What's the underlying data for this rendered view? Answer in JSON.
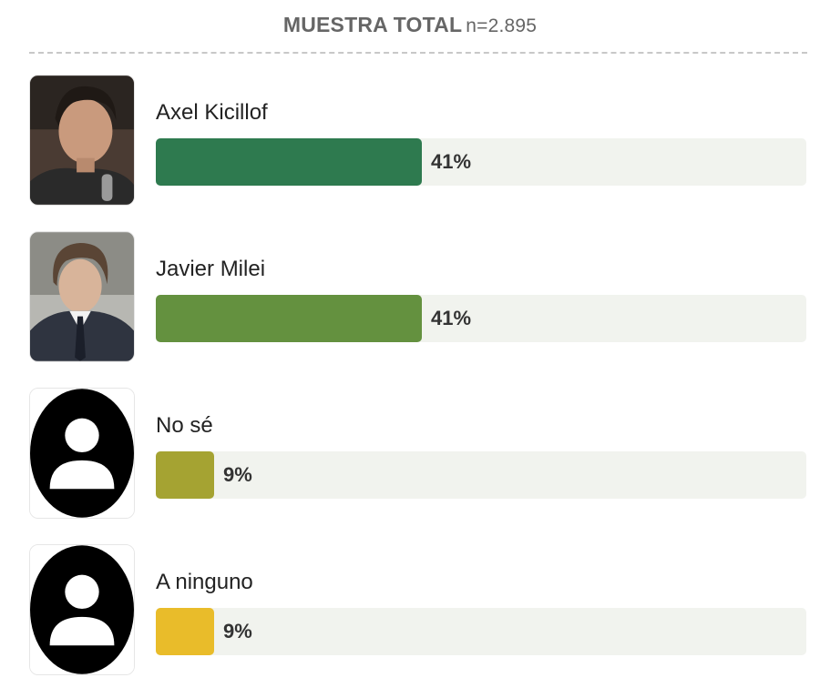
{
  "header": {
    "title": "MUESTRA TOTAL",
    "n_label": "n=2.895"
  },
  "chart_data": {
    "type": "bar",
    "orientation": "horizontal",
    "title": "MUESTRA TOTAL",
    "subtitle": "n=2.895",
    "categories": [
      "Axel Kicillof",
      "Javier Milei",
      "No sé",
      "A ninguno"
    ],
    "values": [
      41,
      41,
      9,
      9
    ],
    "value_labels": [
      "41%",
      "41%",
      "9%",
      "9%"
    ],
    "colors": [
      "#2e7a4f",
      "#64913f",
      "#a5a332",
      "#e9bc2a"
    ],
    "xlim": [
      0,
      100
    ],
    "grid": false,
    "legend": "none"
  },
  "rows": [
    {
      "name": "Axel Kicillof",
      "pct": "41%",
      "value": 41,
      "color": "#2e7a4f",
      "avatar": "photo-man-dark-curly-hair"
    },
    {
      "name": "Javier Milei",
      "pct": "41%",
      "value": 41,
      "color": "#64913f",
      "avatar": "photo-man-suit-tie"
    },
    {
      "name": "No sé",
      "pct": "9%",
      "value": 9,
      "color": "#a5a332",
      "avatar": "generic-user-icon"
    },
    {
      "name": "A ninguno",
      "pct": "9%",
      "value": 9,
      "color": "#e9bc2a",
      "avatar": "generic-user-icon"
    }
  ]
}
